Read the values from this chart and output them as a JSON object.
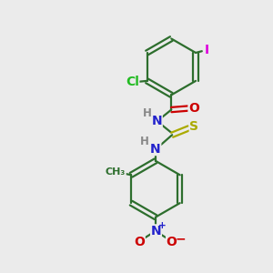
{
  "bg_color": "#ebebeb",
  "bond_color": "#2d6e2d",
  "line_width": 1.6,
  "atom_colors": {
    "Cl": "#22bb22",
    "I": "#dd00dd",
    "N": "#2222cc",
    "O": "#cc0000",
    "S": "#aaaa00",
    "H": "#888888",
    "C": "#2d6e2d"
  },
  "font_size": 10,
  "small_font_size": 8.5
}
